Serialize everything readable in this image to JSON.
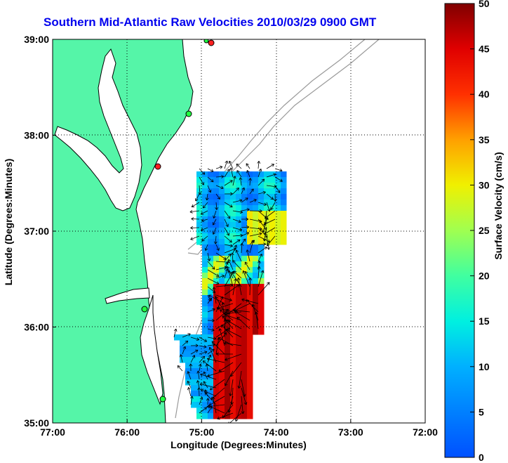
{
  "title": "Southern Mid-Atlantic Raw Velocities 2010/03/29 0900 GMT",
  "xlabel": "Longitude (Degrees:Minutes)",
  "ylabel": "Latitude (Degrees:Minutes)",
  "colorbar": {
    "label": "Surface Velocity (cm/s)",
    "ticks": [
      "0",
      "5",
      "10",
      "15",
      "20",
      "25",
      "30",
      "35",
      "40",
      "45",
      "50"
    ],
    "min": 0,
    "max": 50
  },
  "chart_data": {
    "type": "heatmap",
    "title": "Southern Mid-Atlantic Raw Velocities 2010/03/29 0900 GMT",
    "xlabel": "Longitude (Degrees:Minutes)",
    "ylabel": "Latitude (Degrees:Minutes)",
    "xticks": [
      "77:00",
      "76:00",
      "75:00",
      "74:00",
      "73:00",
      "72:00"
    ],
    "yticks": [
      "39:00",
      "38:00",
      "37:00",
      "36:00",
      "35:00"
    ],
    "xlim": [
      -77,
      -72
    ],
    "ylim": [
      35,
      39
    ],
    "grid": true,
    "colors": {
      "land": "#55f5a8",
      "coast": "#000000",
      "bathy": "#9a9a9a",
      "title": "#0000ee"
    }
  }
}
